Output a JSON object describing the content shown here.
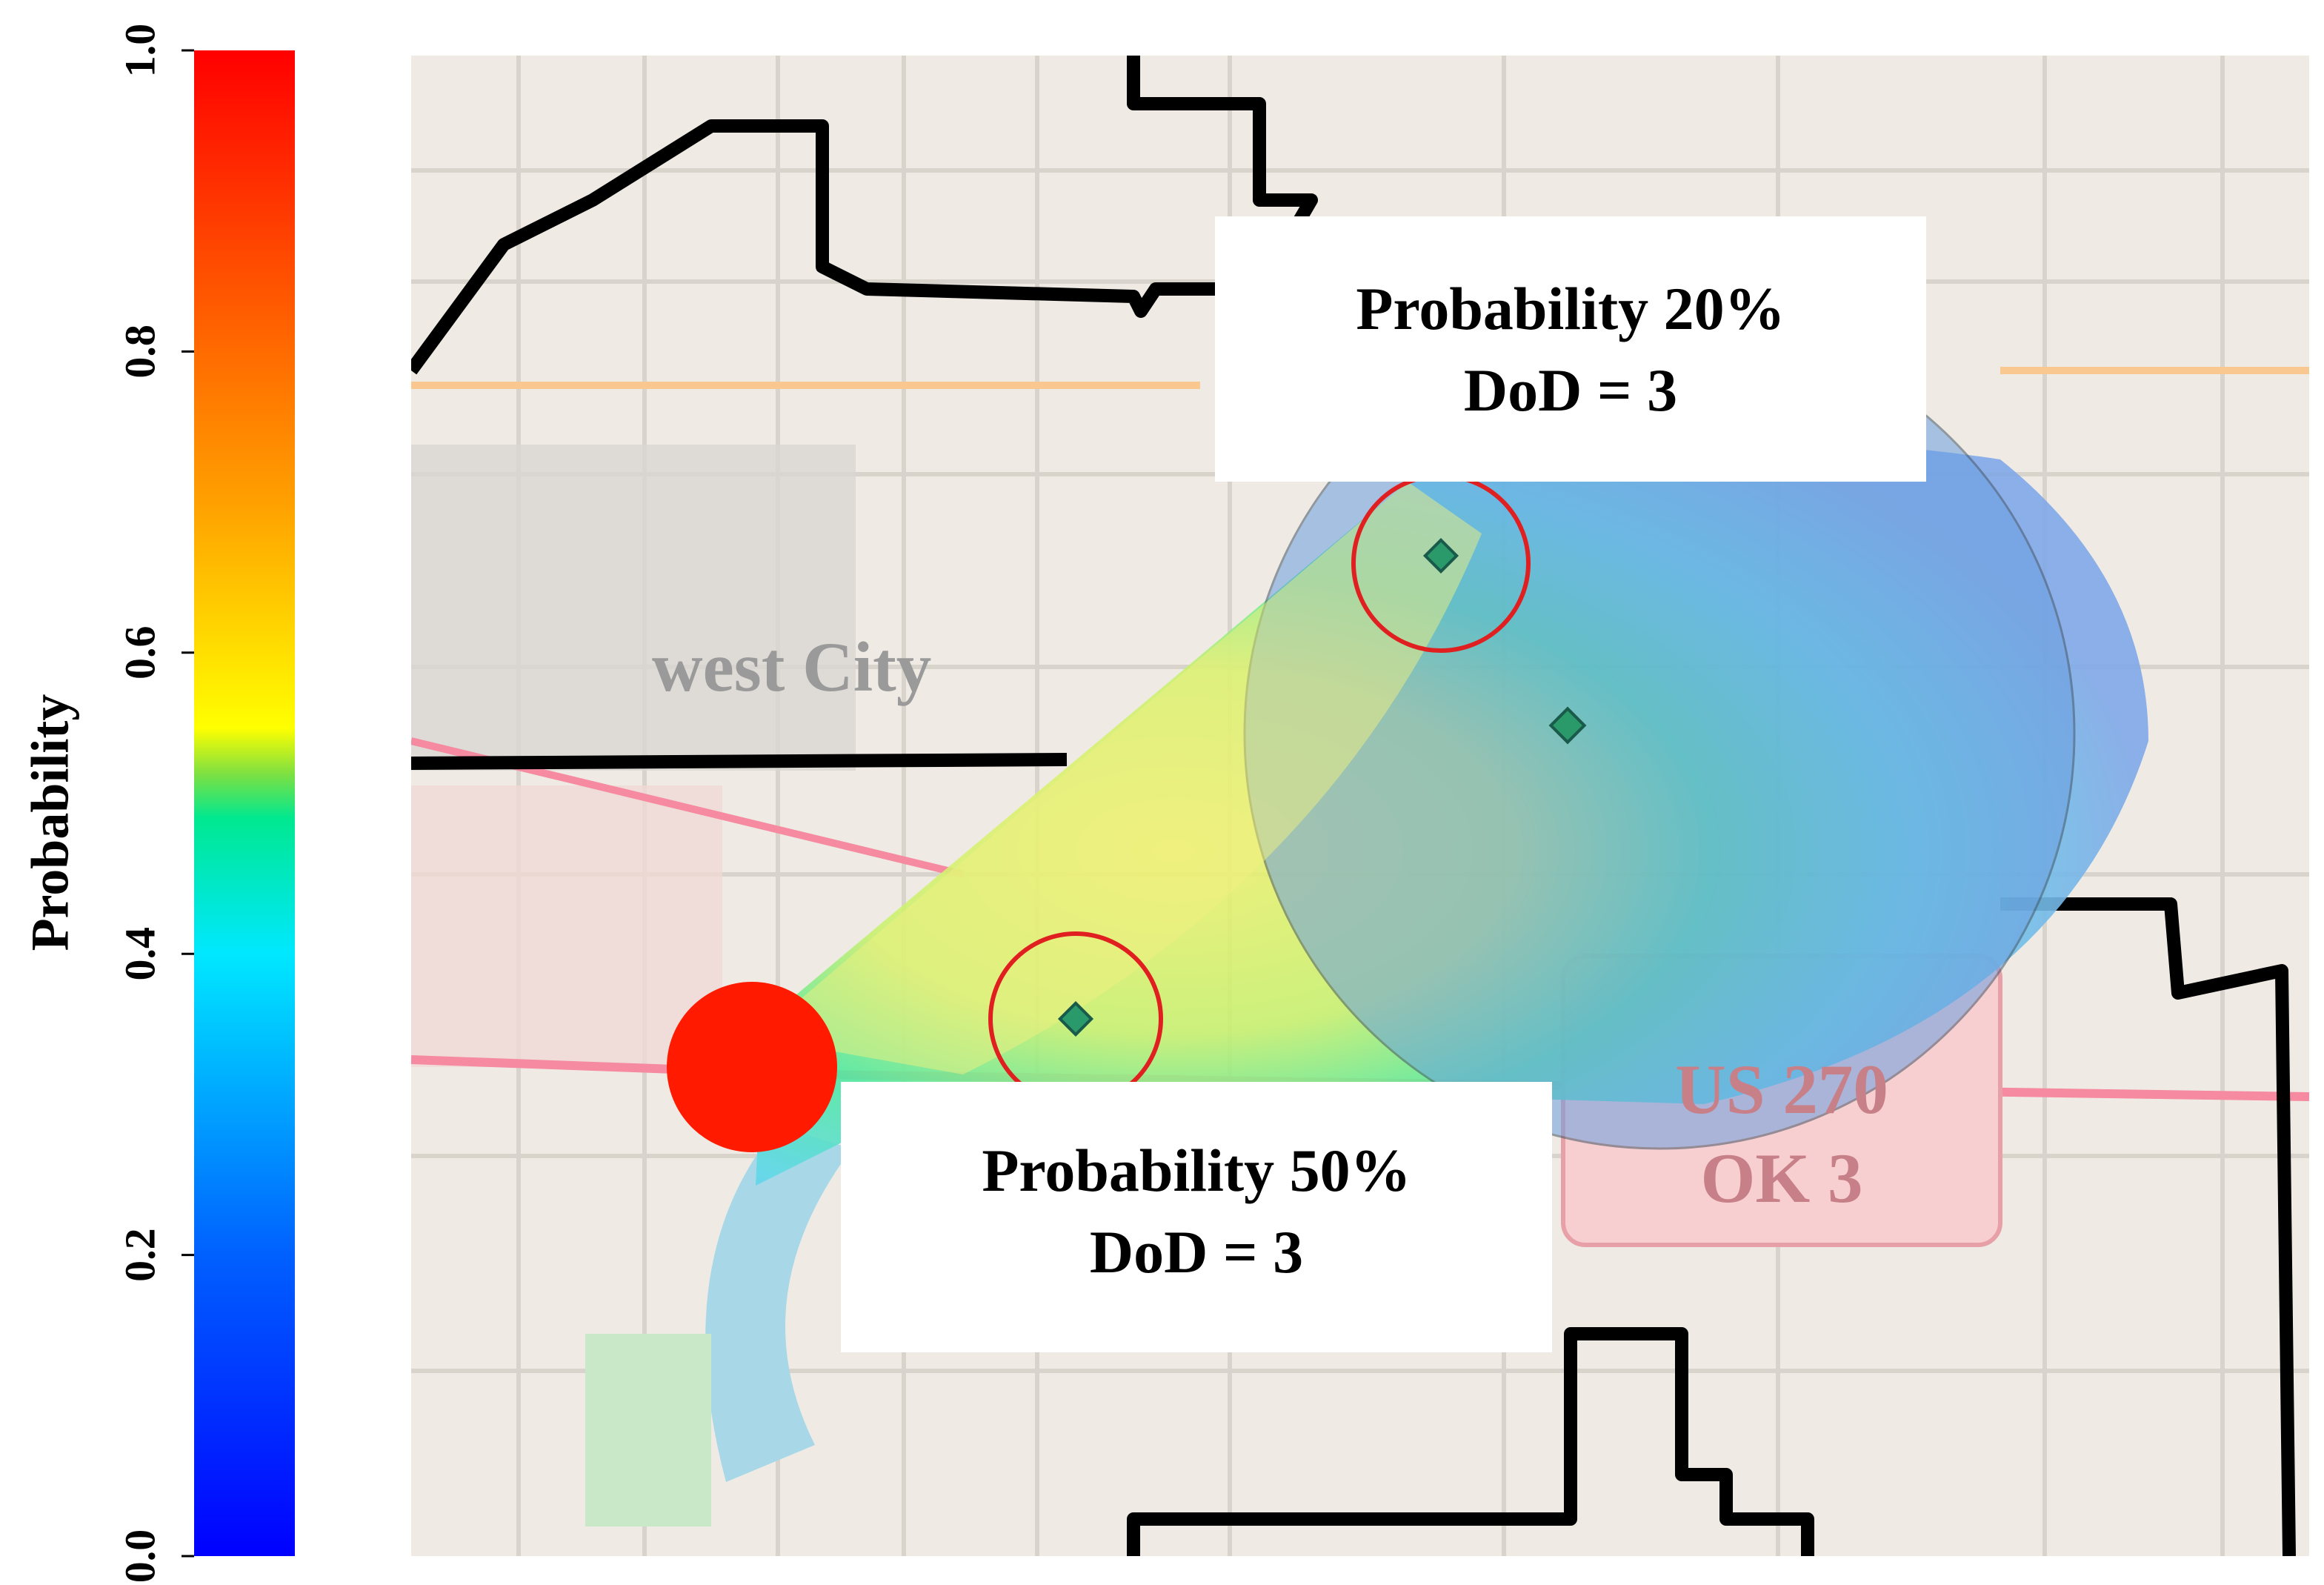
{
  "colorbar": {
    "label": "Probability",
    "lim": [
      0,
      1
    ],
    "ticks": [
      {
        "value": 0,
        "label": "0.0"
      },
      0.2,
      0.4,
      0.6,
      0.8,
      {
        "value": 1,
        "label": "1.0"
      }
    ]
  },
  "map_labels": {
    "city": "west City",
    "route_1": "US 270",
    "route_2": "OK 3"
  },
  "annotations": [
    {
      "line_1": "Probability 20%",
      "line_2": "DoD = 3"
    },
    {
      "line_1": "Probability 50%",
      "line_2": "DoD = 3"
    }
  ]
}
